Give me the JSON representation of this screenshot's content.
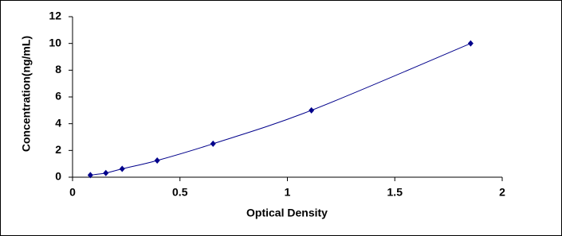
{
  "chart_data": {
    "type": "scatter",
    "x_label": "Optical Density",
    "y_label": "Concentration(ng/mL)",
    "series": [
      {
        "color": "#00008b",
        "x": [
          0.083,
          0.155,
          0.231,
          0.394,
          0.654,
          1.112,
          1.853
        ],
        "values": [
          0.156,
          0.312,
          0.625,
          1.25,
          2.5,
          5,
          10
        ]
      }
    ],
    "xlim": [
      0,
      2
    ],
    "xticks": [
      0,
      0.5,
      1,
      1.5,
      2
    ],
    "ylim": [
      0,
      12
    ],
    "yticks": [
      0,
      2,
      4,
      6,
      8,
      10,
      12
    ],
    "grid": false,
    "smooth_line": true
  }
}
